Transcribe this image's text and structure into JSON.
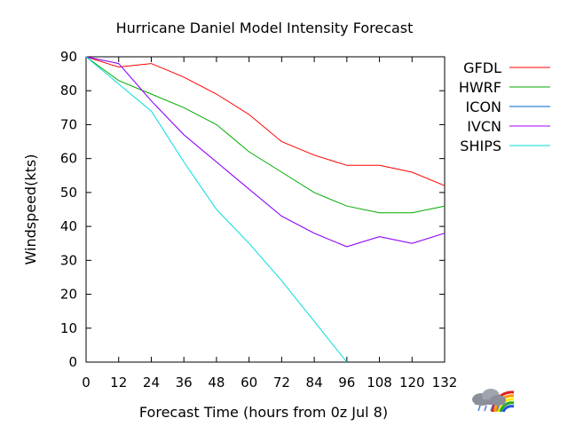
{
  "chart_data": {
    "type": "line",
    "title": "Hurricane Daniel Model Intensity Forecast",
    "xlabel": "Forecast Time (hours from 0z Jul 8)",
    "ylabel": "Windspeed(kts)",
    "xlim": [
      0,
      132
    ],
    "ylim": [
      0,
      90
    ],
    "x_ticks": [
      0,
      12,
      24,
      36,
      48,
      60,
      72,
      84,
      96,
      108,
      120,
      132
    ],
    "y_ticks": [
      0,
      10,
      20,
      30,
      40,
      50,
      60,
      70,
      80,
      90
    ],
    "grid": false,
    "legend_position": "right",
    "series": [
      {
        "name": "GFDL",
        "color": "#ff0000",
        "x": [
          0,
          12,
          24,
          36,
          48,
          60,
          72,
          84,
          96,
          108,
          120,
          132
        ],
        "values": [
          90,
          87,
          88,
          84,
          79,
          73,
          65,
          61,
          58,
          58,
          56,
          52
        ]
      },
      {
        "name": "HWRF",
        "color": "#00aa00",
        "x": [
          0,
          12,
          24,
          36,
          48,
          60,
          72,
          84,
          96,
          108,
          120,
          132
        ],
        "values": [
          90,
          83,
          79,
          75,
          70,
          62,
          56,
          50,
          46,
          44,
          44,
          46
        ]
      },
      {
        "name": "ICON",
        "color": "#0066cc",
        "x": [
          0,
          12,
          24,
          36,
          48,
          60,
          72,
          84,
          96,
          108,
          120,
          132
        ],
        "values": [
          90,
          88,
          77,
          67,
          59,
          51,
          43,
          38,
          34,
          37,
          35,
          38
        ]
      },
      {
        "name": "IVCN",
        "color": "#aa00ff",
        "x": [
          0,
          12,
          24,
          36,
          48,
          60,
          72,
          84,
          96,
          108,
          120,
          132
        ],
        "values": [
          90,
          88,
          77,
          67,
          59,
          51,
          43,
          38,
          34,
          37,
          35,
          38
        ]
      },
      {
        "name": "SHIPS",
        "color": "#00dddd",
        "x": [
          0,
          12,
          24,
          36,
          48,
          60,
          72,
          84,
          96
        ],
        "values": [
          90,
          82,
          74,
          59,
          45,
          35,
          24,
          12,
          0
        ]
      }
    ]
  },
  "logo": {
    "icon": "weather-cloud-rainbow-icon"
  }
}
